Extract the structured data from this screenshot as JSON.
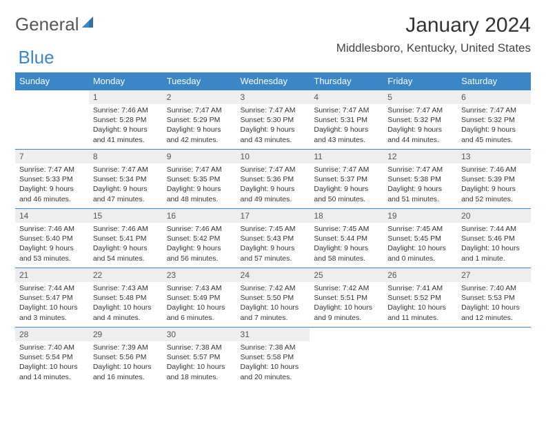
{
  "brand": {
    "part1": "General",
    "part2": "Blue"
  },
  "title": "January 2024",
  "location": "Middlesboro, Kentucky, United States",
  "accent_color": "#3b86c6",
  "header_bg": "#eeeeee",
  "weekdays": [
    "Sunday",
    "Monday",
    "Tuesday",
    "Wednesday",
    "Thursday",
    "Friday",
    "Saturday"
  ],
  "weeks": [
    [
      null,
      {
        "n": "1",
        "sunrise": "7:46 AM",
        "sunset": "5:28 PM",
        "daylight": "9 hours and 41 minutes."
      },
      {
        "n": "2",
        "sunrise": "7:47 AM",
        "sunset": "5:29 PM",
        "daylight": "9 hours and 42 minutes."
      },
      {
        "n": "3",
        "sunrise": "7:47 AM",
        "sunset": "5:30 PM",
        "daylight": "9 hours and 43 minutes."
      },
      {
        "n": "4",
        "sunrise": "7:47 AM",
        "sunset": "5:31 PM",
        "daylight": "9 hours and 43 minutes."
      },
      {
        "n": "5",
        "sunrise": "7:47 AM",
        "sunset": "5:32 PM",
        "daylight": "9 hours and 44 minutes."
      },
      {
        "n": "6",
        "sunrise": "7:47 AM",
        "sunset": "5:32 PM",
        "daylight": "9 hours and 45 minutes."
      }
    ],
    [
      {
        "n": "7",
        "sunrise": "7:47 AM",
        "sunset": "5:33 PM",
        "daylight": "9 hours and 46 minutes."
      },
      {
        "n": "8",
        "sunrise": "7:47 AM",
        "sunset": "5:34 PM",
        "daylight": "9 hours and 47 minutes."
      },
      {
        "n": "9",
        "sunrise": "7:47 AM",
        "sunset": "5:35 PM",
        "daylight": "9 hours and 48 minutes."
      },
      {
        "n": "10",
        "sunrise": "7:47 AM",
        "sunset": "5:36 PM",
        "daylight": "9 hours and 49 minutes."
      },
      {
        "n": "11",
        "sunrise": "7:47 AM",
        "sunset": "5:37 PM",
        "daylight": "9 hours and 50 minutes."
      },
      {
        "n": "12",
        "sunrise": "7:47 AM",
        "sunset": "5:38 PM",
        "daylight": "9 hours and 51 minutes."
      },
      {
        "n": "13",
        "sunrise": "7:46 AM",
        "sunset": "5:39 PM",
        "daylight": "9 hours and 52 minutes."
      }
    ],
    [
      {
        "n": "14",
        "sunrise": "7:46 AM",
        "sunset": "5:40 PM",
        "daylight": "9 hours and 53 minutes."
      },
      {
        "n": "15",
        "sunrise": "7:46 AM",
        "sunset": "5:41 PM",
        "daylight": "9 hours and 54 minutes."
      },
      {
        "n": "16",
        "sunrise": "7:46 AM",
        "sunset": "5:42 PM",
        "daylight": "9 hours and 56 minutes."
      },
      {
        "n": "17",
        "sunrise": "7:45 AM",
        "sunset": "5:43 PM",
        "daylight": "9 hours and 57 minutes."
      },
      {
        "n": "18",
        "sunrise": "7:45 AM",
        "sunset": "5:44 PM",
        "daylight": "9 hours and 58 minutes."
      },
      {
        "n": "19",
        "sunrise": "7:45 AM",
        "sunset": "5:45 PM",
        "daylight": "10 hours and 0 minutes."
      },
      {
        "n": "20",
        "sunrise": "7:44 AM",
        "sunset": "5:46 PM",
        "daylight": "10 hours and 1 minute."
      }
    ],
    [
      {
        "n": "21",
        "sunrise": "7:44 AM",
        "sunset": "5:47 PM",
        "daylight": "10 hours and 3 minutes."
      },
      {
        "n": "22",
        "sunrise": "7:43 AM",
        "sunset": "5:48 PM",
        "daylight": "10 hours and 4 minutes."
      },
      {
        "n": "23",
        "sunrise": "7:43 AM",
        "sunset": "5:49 PM",
        "daylight": "10 hours and 6 minutes."
      },
      {
        "n": "24",
        "sunrise": "7:42 AM",
        "sunset": "5:50 PM",
        "daylight": "10 hours and 7 minutes."
      },
      {
        "n": "25",
        "sunrise": "7:42 AM",
        "sunset": "5:51 PM",
        "daylight": "10 hours and 9 minutes."
      },
      {
        "n": "26",
        "sunrise": "7:41 AM",
        "sunset": "5:52 PM",
        "daylight": "10 hours and 11 minutes."
      },
      {
        "n": "27",
        "sunrise": "7:40 AM",
        "sunset": "5:53 PM",
        "daylight": "10 hours and 12 minutes."
      }
    ],
    [
      {
        "n": "28",
        "sunrise": "7:40 AM",
        "sunset": "5:54 PM",
        "daylight": "10 hours and 14 minutes."
      },
      {
        "n": "29",
        "sunrise": "7:39 AM",
        "sunset": "5:56 PM",
        "daylight": "10 hours and 16 minutes."
      },
      {
        "n": "30",
        "sunrise": "7:38 AM",
        "sunset": "5:57 PM",
        "daylight": "10 hours and 18 minutes."
      },
      {
        "n": "31",
        "sunrise": "7:38 AM",
        "sunset": "5:58 PM",
        "daylight": "10 hours and 20 minutes."
      },
      null,
      null,
      null
    ]
  ]
}
